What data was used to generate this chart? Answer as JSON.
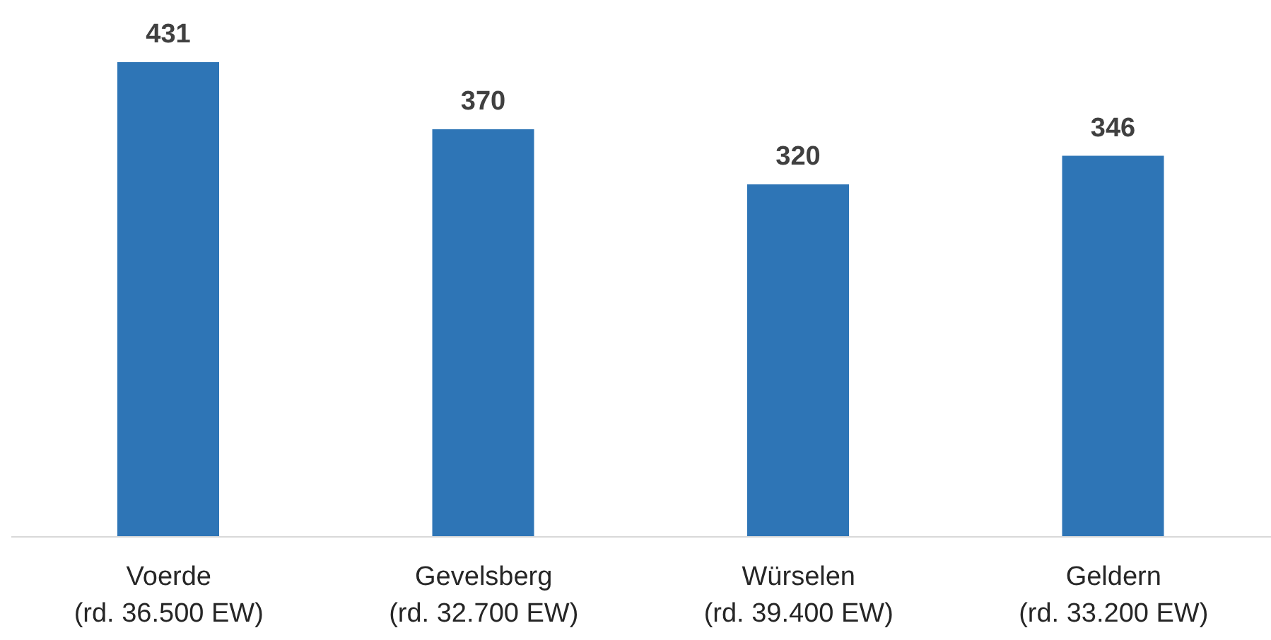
{
  "chart_data": {
    "type": "bar",
    "categories": [
      "Voerde\n(rd. 36.500 EW)",
      "Gevelsberg\n(rd. 32.700 EW)",
      "Würselen\n(rd. 39.400 EW)",
      "Geldern\n(rd. 33.200 EW)"
    ],
    "values": [
      431,
      370,
      320,
      346
    ],
    "color": "#2e75b6",
    "data_labels": true
  }
}
